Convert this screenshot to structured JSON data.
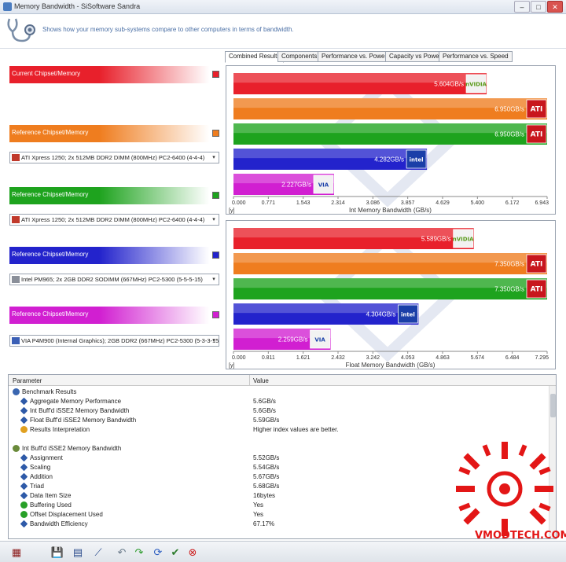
{
  "window": {
    "title": "Memory Bandwidth - SiSoftware Sandra",
    "minimize": "–",
    "maximize": "□",
    "close": "✕"
  },
  "header": {
    "description": "Shows how your memory sub-systems compare to other computers in terms of bandwidth."
  },
  "left_panel": {
    "groups": [
      {
        "label": "Current Chipset/Memory",
        "color": "#e8202b",
        "select": null
      },
      {
        "label": "Reference Chipset/Memory",
        "color": "#ef7d1f",
        "select": "ATI Xpress 1250; 2x 512MB DDR2 DIMM (800MHz) PC2-6400 (4-4-4)"
      },
      {
        "label": "Reference Chipset/Memory",
        "color": "#1ea31e",
        "select": "ATI Xpress 1250; 2x 512MB DDR2 DIMM (800MHz) PC2-6400 (4-4-4)"
      },
      {
        "label": "Reference Chipset/Memory",
        "color": "#2323cc",
        "select": "Intel PM965; 2x 2GB DDR2 SODIMM (667MHz) PC2-5300 (5-5-5-15)"
      },
      {
        "label": "Reference Chipset/Memory",
        "color": "#d11fd1",
        "select": "VIA P4M900 (Internal Graphics); 2GB DDR2 (667MHz) PC2-5300 (5-3-3-15"
      }
    ],
    "dropdown_glyph": "▾"
  },
  "tabs": [
    {
      "label": "Combined Results",
      "active": true
    },
    {
      "label": "Components",
      "active": false
    },
    {
      "label": "Performance vs. Power",
      "active": false
    },
    {
      "label": "Capacity vs Power",
      "active": false
    },
    {
      "label": "Performance vs. Speed",
      "active": false
    }
  ],
  "chart_data": [
    {
      "type": "bar",
      "orientation": "horizontal",
      "xlabel": "Int Memory Bandwidth (GB/s)",
      "unit_marker": "[y]",
      "ticks": [
        "0.000",
        "0.771",
        "1.543",
        "2.314",
        "3.086",
        "3.857",
        "4.629",
        "5.400",
        "6.172",
        "6.943"
      ],
      "xlim": [
        0,
        6.943
      ],
      "bars": [
        {
          "value": 5.604,
          "label": "5.604GB/s",
          "color": "#e8202b",
          "brand": "nvidia"
        },
        {
          "value": 6.95,
          "label": "6.950GB/s",
          "color": "#ef7d1f",
          "brand": "ati"
        },
        {
          "value": 6.95,
          "label": "6.950GB/s",
          "color": "#1ea31e",
          "brand": "ati"
        },
        {
          "value": 4.282,
          "label": "4.282GB/s",
          "color": "#2323cc",
          "brand": "intel"
        },
        {
          "value": 2.227,
          "label": "2.227GB/s",
          "color": "#d11fd1",
          "brand": "via"
        }
      ]
    },
    {
      "type": "bar",
      "orientation": "horizontal",
      "xlabel": "Float Memory Bandwidth (GB/s)",
      "unit_marker": "[y]",
      "ticks": [
        "0.000",
        "0.811",
        "1.621",
        "2.432",
        "3.242",
        "4.053",
        "4.863",
        "5.674",
        "6.484",
        "7.295"
      ],
      "xlim": [
        0,
        7.295
      ],
      "bars": [
        {
          "value": 5.589,
          "label": "5.589GB/s",
          "color": "#e8202b",
          "brand": "nvidia"
        },
        {
          "value": 7.35,
          "label": "7.350GB/s",
          "color": "#ef7d1f",
          "brand": "ati"
        },
        {
          "value": 7.35,
          "label": "7.350GB/s",
          "color": "#1ea31e",
          "brand": "ati"
        },
        {
          "value": 4.304,
          "label": "4.304GB/s",
          "color": "#2323cc",
          "brand": "intel"
        },
        {
          "value": 2.259,
          "label": "2.259GB/s",
          "color": "#d11fd1",
          "brand": "via"
        }
      ]
    }
  ],
  "brand_badges": {
    "nvidia": "nVIDIA",
    "ati": "ATI",
    "intel": "intel",
    "via": "VIA"
  },
  "results": {
    "col_parameter": "Parameter",
    "col_value": "Value",
    "rows": [
      {
        "level": 0,
        "icon": "benchmark-icon",
        "param": "Benchmark Results",
        "value": ""
      },
      {
        "level": 1,
        "icon": "diamond-icon",
        "param": "Aggregate Memory Performance",
        "value": "5.6GB/s"
      },
      {
        "level": 1,
        "icon": "diamond-icon",
        "param": "Int Buff'd iSSE2 Memory Bandwidth",
        "value": "5.6GB/s"
      },
      {
        "level": 1,
        "icon": "diamond-icon",
        "param": "Float Buff'd iSSE2 Memory Bandwidth",
        "value": "5.59GB/s"
      },
      {
        "level": 1,
        "icon": "bulb-icon",
        "param": "Results Interpretation",
        "value": "Higher index values are better."
      },
      {
        "level": -1,
        "icon": "",
        "param": "",
        "value": ""
      },
      {
        "level": 0,
        "icon": "gauge-icon",
        "param": "Int Buff'd iSSE2 Memory Bandwidth",
        "value": ""
      },
      {
        "level": 1,
        "icon": "diamond-icon",
        "param": "Assignment",
        "value": "5.52GB/s"
      },
      {
        "level": 1,
        "icon": "diamond-icon",
        "param": "Scaling",
        "value": "5.54GB/s"
      },
      {
        "level": 1,
        "icon": "diamond-icon",
        "param": "Addition",
        "value": "5.67GB/s"
      },
      {
        "level": 1,
        "icon": "diamond-icon",
        "param": "Triad",
        "value": "5.68GB/s"
      },
      {
        "level": 1,
        "icon": "diamond-icon",
        "param": "Data Item Size",
        "value": "16bytes"
      },
      {
        "level": 1,
        "icon": "check-icon",
        "param": "Buffering Used",
        "value": "Yes"
      },
      {
        "level": 1,
        "icon": "check-icon",
        "param": "Offset Displacement Used",
        "value": "Yes"
      },
      {
        "level": 1,
        "icon": "diamond-icon",
        "param": "Bandwidth Efficiency",
        "value": "67.17%"
      }
    ]
  },
  "toolbar": {
    "icons": [
      "calculator-icon",
      "save-icon",
      "report-icon",
      "graph-options-icon",
      "back-icon",
      "forward-icon",
      "refresh-icon",
      "ok-icon",
      "cancel-icon"
    ]
  },
  "watermark": {
    "text": "VMODTECH.COM"
  }
}
